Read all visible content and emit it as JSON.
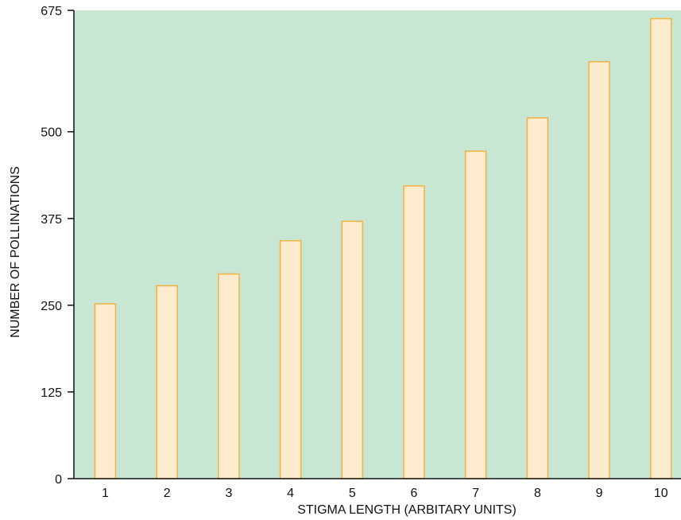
{
  "chart_data": {
    "type": "bar",
    "title": "",
    "xlabel": "STIGMA LENGTH (ARBITARY UNITS)",
    "ylabel": "NUMBER OF POLLINATIONS",
    "categories": [
      "1",
      "2",
      "3",
      "4",
      "5",
      "6",
      "7",
      "8",
      "9",
      "10"
    ],
    "values": [
      252,
      278,
      295,
      343,
      371,
      422,
      472,
      520,
      601,
      663
    ],
    "ylim": [
      0,
      675
    ],
    "yticks": [
      "0",
      "125",
      "250",
      "375",
      "500",
      "675"
    ],
    "grid": false,
    "colors": {
      "plot_background": "#c8e6d4",
      "bar_fill": "#fdebd0",
      "bar_stroke": "#f2b33d",
      "axis": "#111111"
    }
  }
}
